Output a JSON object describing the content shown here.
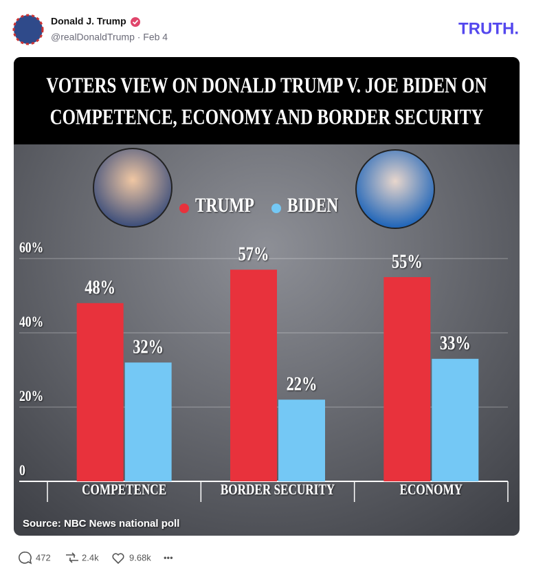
{
  "post": {
    "author": "Donald J. Trump",
    "byline": "@realDonaldTrump · Feb 4",
    "logo": "TRUTH.",
    "replies": "472",
    "retruths": "2.4k",
    "likes": "9.68k",
    "more": "•••"
  },
  "chart_data": {
    "type": "bar",
    "title": [
      "VOTERS VIEW ON DONALD TRUMP V. JOE BIDEN ON",
      "COMPETENCE, ECONOMY AND BORDER SECURITY"
    ],
    "categories": [
      "COMPETENCE",
      "BORDER SECURITY",
      "ECONOMY"
    ],
    "series": [
      {
        "name": "TRUMP",
        "color": "#e8323c",
        "values": [
          48,
          57,
          55
        ],
        "value_labels": [
          "48%",
          "57%",
          "55%"
        ]
      },
      {
        "name": "BIDEN",
        "color": "#74c8f5",
        "values": [
          32,
          22,
          33
        ],
        "value_labels": [
          "32%",
          "22%",
          "33%"
        ]
      }
    ],
    "ylim": [
      0,
      60
    ],
    "yticks": [
      0,
      {
        "value": 20,
        "label": "20%"
      },
      {
        "value": 40,
        "label": "40%"
      },
      {
        "value": 60,
        "label": "60%"
      }
    ],
    "grid": true,
    "source": "Source: NBC News national poll"
  }
}
